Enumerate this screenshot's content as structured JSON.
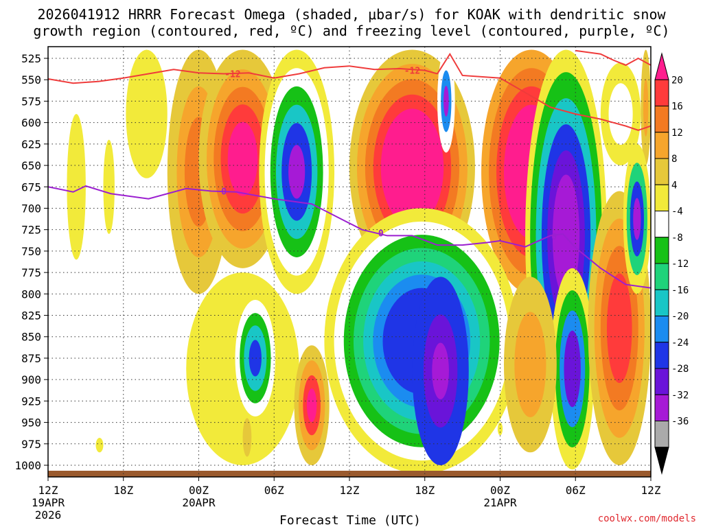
{
  "chart_data": {
    "type": "heatmap",
    "title_line1": "2026041912 HRRR Forecast Omega (shaded, μbar/s) for KOAK with dendritic snow",
    "title_line2": "growth region (contoured, red, ºC) and freezing level (contoured, purple, ºC)",
    "xlabel": "Forecast Time (UTC)",
    "credit": "coolwx.com/models",
    "x_range_hours": [
      0,
      48
    ],
    "y_range_hpa": [
      1010,
      515
    ],
    "y_ticks": [
      "525",
      "550",
      "575",
      "600",
      "625",
      "650",
      "675",
      "700",
      "725",
      "750",
      "775",
      "800",
      "825",
      "850",
      "875",
      "900",
      "925",
      "950",
      "975",
      "1000"
    ],
    "x_ticks": [
      {
        "hour": 0,
        "label": "12Z",
        "date": "19APR",
        "year": "2026"
      },
      {
        "hour": 6,
        "label": "18Z",
        "date": "",
        "year": ""
      },
      {
        "hour": 12,
        "label": "00Z",
        "date": "20APR",
        "year": ""
      },
      {
        "hour": 18,
        "label": "06Z",
        "date": "",
        "year": ""
      },
      {
        "hour": 24,
        "label": "12Z",
        "date": "",
        "year": ""
      },
      {
        "hour": 30,
        "label": "18Z",
        "date": "",
        "year": ""
      },
      {
        "hour": 36,
        "label": "00Z",
        "date": "21APR",
        "year": ""
      },
      {
        "hour": 42,
        "label": "06Z",
        "date": "",
        "year": ""
      },
      {
        "hour": 48,
        "label": "12Z",
        "date": "",
        "year": ""
      }
    ],
    "colorbar": {
      "levels": [
        "20",
        "16",
        "12",
        "8",
        "4",
        "-4",
        "-8",
        "-12",
        "-16",
        "-20",
        "-24",
        "-28",
        "-32",
        "-36"
      ],
      "colors": [
        "#ff1d8e",
        "#ff3b3b",
        "#f37a22",
        "#f6a52c",
        "#e6c83a",
        "#f2ea3a",
        "#ffffff",
        "#16c116",
        "#1fd37a",
        "#19c6c6",
        "#1b8cf0",
        "#1f35e6",
        "#6a14d9",
        "#a61ad6",
        "#aaaaaa",
        "#000000"
      ]
    },
    "freezing_level": {
      "label": "0",
      "color": "#9b1fd0",
      "points": [
        [
          0,
          675
        ],
        [
          2,
          681
        ],
        [
          3,
          674
        ],
        [
          5,
          683
        ],
        [
          8,
          689
        ],
        [
          11,
          677
        ],
        [
          13,
          680
        ],
        [
          15,
          681
        ],
        [
          18,
          689
        ],
        [
          21,
          695
        ],
        [
          23,
          710
        ],
        [
          25,
          725
        ],
        [
          27,
          732
        ],
        [
          29,
          732
        ],
        [
          31,
          743
        ],
        [
          33,
          743
        ],
        [
          35,
          740
        ],
        [
          36,
          738
        ],
        [
          38,
          745
        ],
        [
          40,
          732
        ],
        [
          41,
          730
        ],
        [
          42,
          746
        ],
        [
          44,
          770
        ],
        [
          46,
          789
        ],
        [
          48,
          793
        ]
      ]
    },
    "dgz_minus12": {
      "label": "-12",
      "color": "#ef3b3b",
      "points": [
        [
          0,
          549
        ],
        [
          2,
          554
        ],
        [
          4,
          552
        ],
        [
          6,
          548
        ],
        [
          8,
          543
        ],
        [
          10,
          538
        ],
        [
          12,
          542
        ],
        [
          14,
          543
        ],
        [
          16,
          542
        ],
        [
          18,
          548
        ],
        [
          20,
          543
        ],
        [
          22,
          536
        ],
        [
          24,
          534
        ],
        [
          26,
          538
        ],
        [
          28,
          537
        ],
        [
          30,
          539
        ],
        [
          31,
          543
        ],
        [
          32,
          520
        ],
        [
          33,
          545
        ],
        [
          36,
          548
        ],
        [
          38,
          565
        ],
        [
          40,
          582
        ],
        [
          42,
          590
        ],
        [
          44,
          596
        ],
        [
          46,
          604
        ],
        [
          47,
          609
        ],
        [
          48,
          604
        ]
      ]
    },
    "dgz_upper_right": {
      "color": "#ef3b3b",
      "points": [
        [
          42,
          516
        ],
        [
          44,
          520
        ],
        [
          45,
          527
        ],
        [
          46,
          533
        ],
        [
          47,
          525
        ],
        [
          48,
          533
        ]
      ]
    },
    "omega_blobs": [
      {
        "x0": 1.5,
        "x1": 3.0,
        "p0": 590,
        "p1": 760,
        "cells": [
          [
            1.0,
            -4
          ]
        ]
      },
      {
        "x0": 4.4,
        "x1": 5.3,
        "p0": 620,
        "p1": 730,
        "cells": [
          [
            1.0,
            -4
          ]
        ]
      },
      {
        "x0": 6.2,
        "x1": 9.5,
        "p0": 515,
        "p1": 665,
        "cells": [
          [
            1.0,
            -4
          ]
        ]
      },
      {
        "x0": 9.5,
        "x1": 14.5,
        "p0": 515,
        "p1": 800,
        "cells": [
          [
            1.0,
            4
          ],
          [
            0.7,
            8
          ],
          [
            0.45,
            12
          ]
        ]
      },
      {
        "x0": 12.0,
        "x1": 19.0,
        "p0": 515,
        "p1": 770,
        "cells": [
          [
            1.0,
            4
          ],
          [
            0.82,
            8
          ],
          [
            0.66,
            12
          ],
          [
            0.5,
            16
          ],
          [
            0.34,
            20
          ]
        ]
      },
      {
        "x0": 16.8,
        "x1": 22.8,
        "p0": 515,
        "p1": 800,
        "cells": [
          [
            1.0,
            -4
          ],
          [
            0.85,
            -8
          ],
          [
            0.7,
            -12
          ],
          [
            0.55,
            -20
          ],
          [
            0.4,
            -28
          ],
          [
            0.22,
            -36
          ]
        ]
      },
      {
        "x0": 24.0,
        "x1": 34.0,
        "p0": 515,
        "p1": 790,
        "cells": [
          [
            1.0,
            4
          ],
          [
            0.88,
            8
          ],
          [
            0.75,
            12
          ],
          [
            0.62,
            16
          ],
          [
            0.5,
            20
          ]
        ]
      },
      {
        "x0": 31.0,
        "x1": 32.4,
        "p0": 515,
        "p1": 635,
        "cells": [
          [
            1.0,
            -8
          ],
          [
            0.6,
            -24
          ],
          [
            0.3,
            -36
          ]
        ]
      },
      {
        "x0": 34.5,
        "x1": 42.5,
        "p0": 515,
        "p1": 800,
        "cells": [
          [
            1.0,
            8
          ],
          [
            0.85,
            12
          ],
          [
            0.7,
            16
          ],
          [
            0.55,
            20
          ]
        ]
      },
      {
        "x0": 38.0,
        "x1": 44.5,
        "p0": 515,
        "p1": 950,
        "cells": [
          [
            1.0,
            -4
          ],
          [
            0.88,
            -12
          ],
          [
            0.74,
            -20
          ],
          [
            0.6,
            -28
          ],
          [
            0.46,
            -32
          ],
          [
            0.33,
            -36
          ]
        ]
      },
      {
        "x0": 44.0,
        "x1": 47.2,
        "p0": 530,
        "p1": 650,
        "cells": [
          [
            1.0,
            -4
          ],
          [
            0.6,
            -8
          ]
        ]
      },
      {
        "x0": 47.2,
        "x1": 48.0,
        "p0": 515,
        "p1": 650,
        "cells": [
          [
            1.0,
            4
          ],
          [
            0.5,
            8
          ]
        ]
      },
      {
        "x0": 11.0,
        "x1": 20.0,
        "p0": 775,
        "p1": 1000,
        "cells": [
          [
            1.0,
            -4
          ]
        ]
      },
      {
        "x0": 14.5,
        "x1": 18.5,
        "p0": 790,
        "p1": 960,
        "cells": [
          [
            1.0,
            -4
          ],
          [
            0.8,
            -8
          ],
          [
            0.62,
            -12
          ],
          [
            0.45,
            -20
          ],
          [
            0.25,
            -28
          ]
        ]
      },
      {
        "x0": 19.6,
        "x1": 22.4,
        "p0": 860,
        "p1": 1000,
        "cells": [
          [
            1.0,
            4
          ],
          [
            0.75,
            8
          ],
          [
            0.5,
            16
          ],
          [
            0.28,
            20
          ]
        ]
      },
      {
        "x0": 22.0,
        "x1": 37.5,
        "p0": 700,
        "p1": 1010,
        "cells": [
          [
            1.0,
            -4
          ],
          [
            0.9,
            -8
          ],
          [
            0.8,
            -12
          ],
          [
            0.7,
            -16
          ],
          [
            0.6,
            -20
          ],
          [
            0.5,
            -24
          ],
          [
            0.4,
            -28
          ]
        ]
      },
      {
        "x0": 29.0,
        "x1": 33.5,
        "p0": 780,
        "p1": 1000,
        "cells": [
          [
            1.0,
            -28
          ],
          [
            0.6,
            -32
          ],
          [
            0.3,
            -36
          ]
        ]
      },
      {
        "x0": 40.0,
        "x1": 43.5,
        "p0": 770,
        "p1": 1005,
        "cells": [
          [
            1.0,
            -4
          ],
          [
            0.78,
            -12
          ],
          [
            0.58,
            -24
          ],
          [
            0.38,
            -32
          ]
        ]
      },
      {
        "x0": 43.0,
        "x1": 48.0,
        "p0": 680,
        "p1": 1000,
        "cells": [
          [
            1.0,
            4
          ],
          [
            0.8,
            8
          ],
          [
            0.6,
            12
          ],
          [
            0.4,
            16
          ]
        ]
      },
      {
        "x0": 45.8,
        "x1": 48.0,
        "p0": 625,
        "p1": 800,
        "cells": [
          [
            1.0,
            -4
          ],
          [
            0.75,
            -16
          ],
          [
            0.5,
            -28
          ],
          [
            0.28,
            -36
          ]
        ]
      },
      {
        "x0": 36.3,
        "x1": 40.5,
        "p0": 780,
        "p1": 985,
        "cells": [
          [
            1.0,
            4
          ],
          [
            0.6,
            8
          ]
        ]
      },
      {
        "x0": 3.8,
        "x1": 4.4,
        "p0": 968,
        "p1": 985,
        "cells": [
          [
            1.0,
            -4
          ]
        ]
      },
      {
        "x0": 15.5,
        "x1": 16.2,
        "p0": 945,
        "p1": 990,
        "cells": [
          [
            1.0,
            4
          ]
        ]
      },
      {
        "x0": 35.8,
        "x1": 36.2,
        "p0": 950,
        "p1": 965,
        "cells": [
          [
            1.0,
            -4
          ]
        ]
      }
    ]
  }
}
